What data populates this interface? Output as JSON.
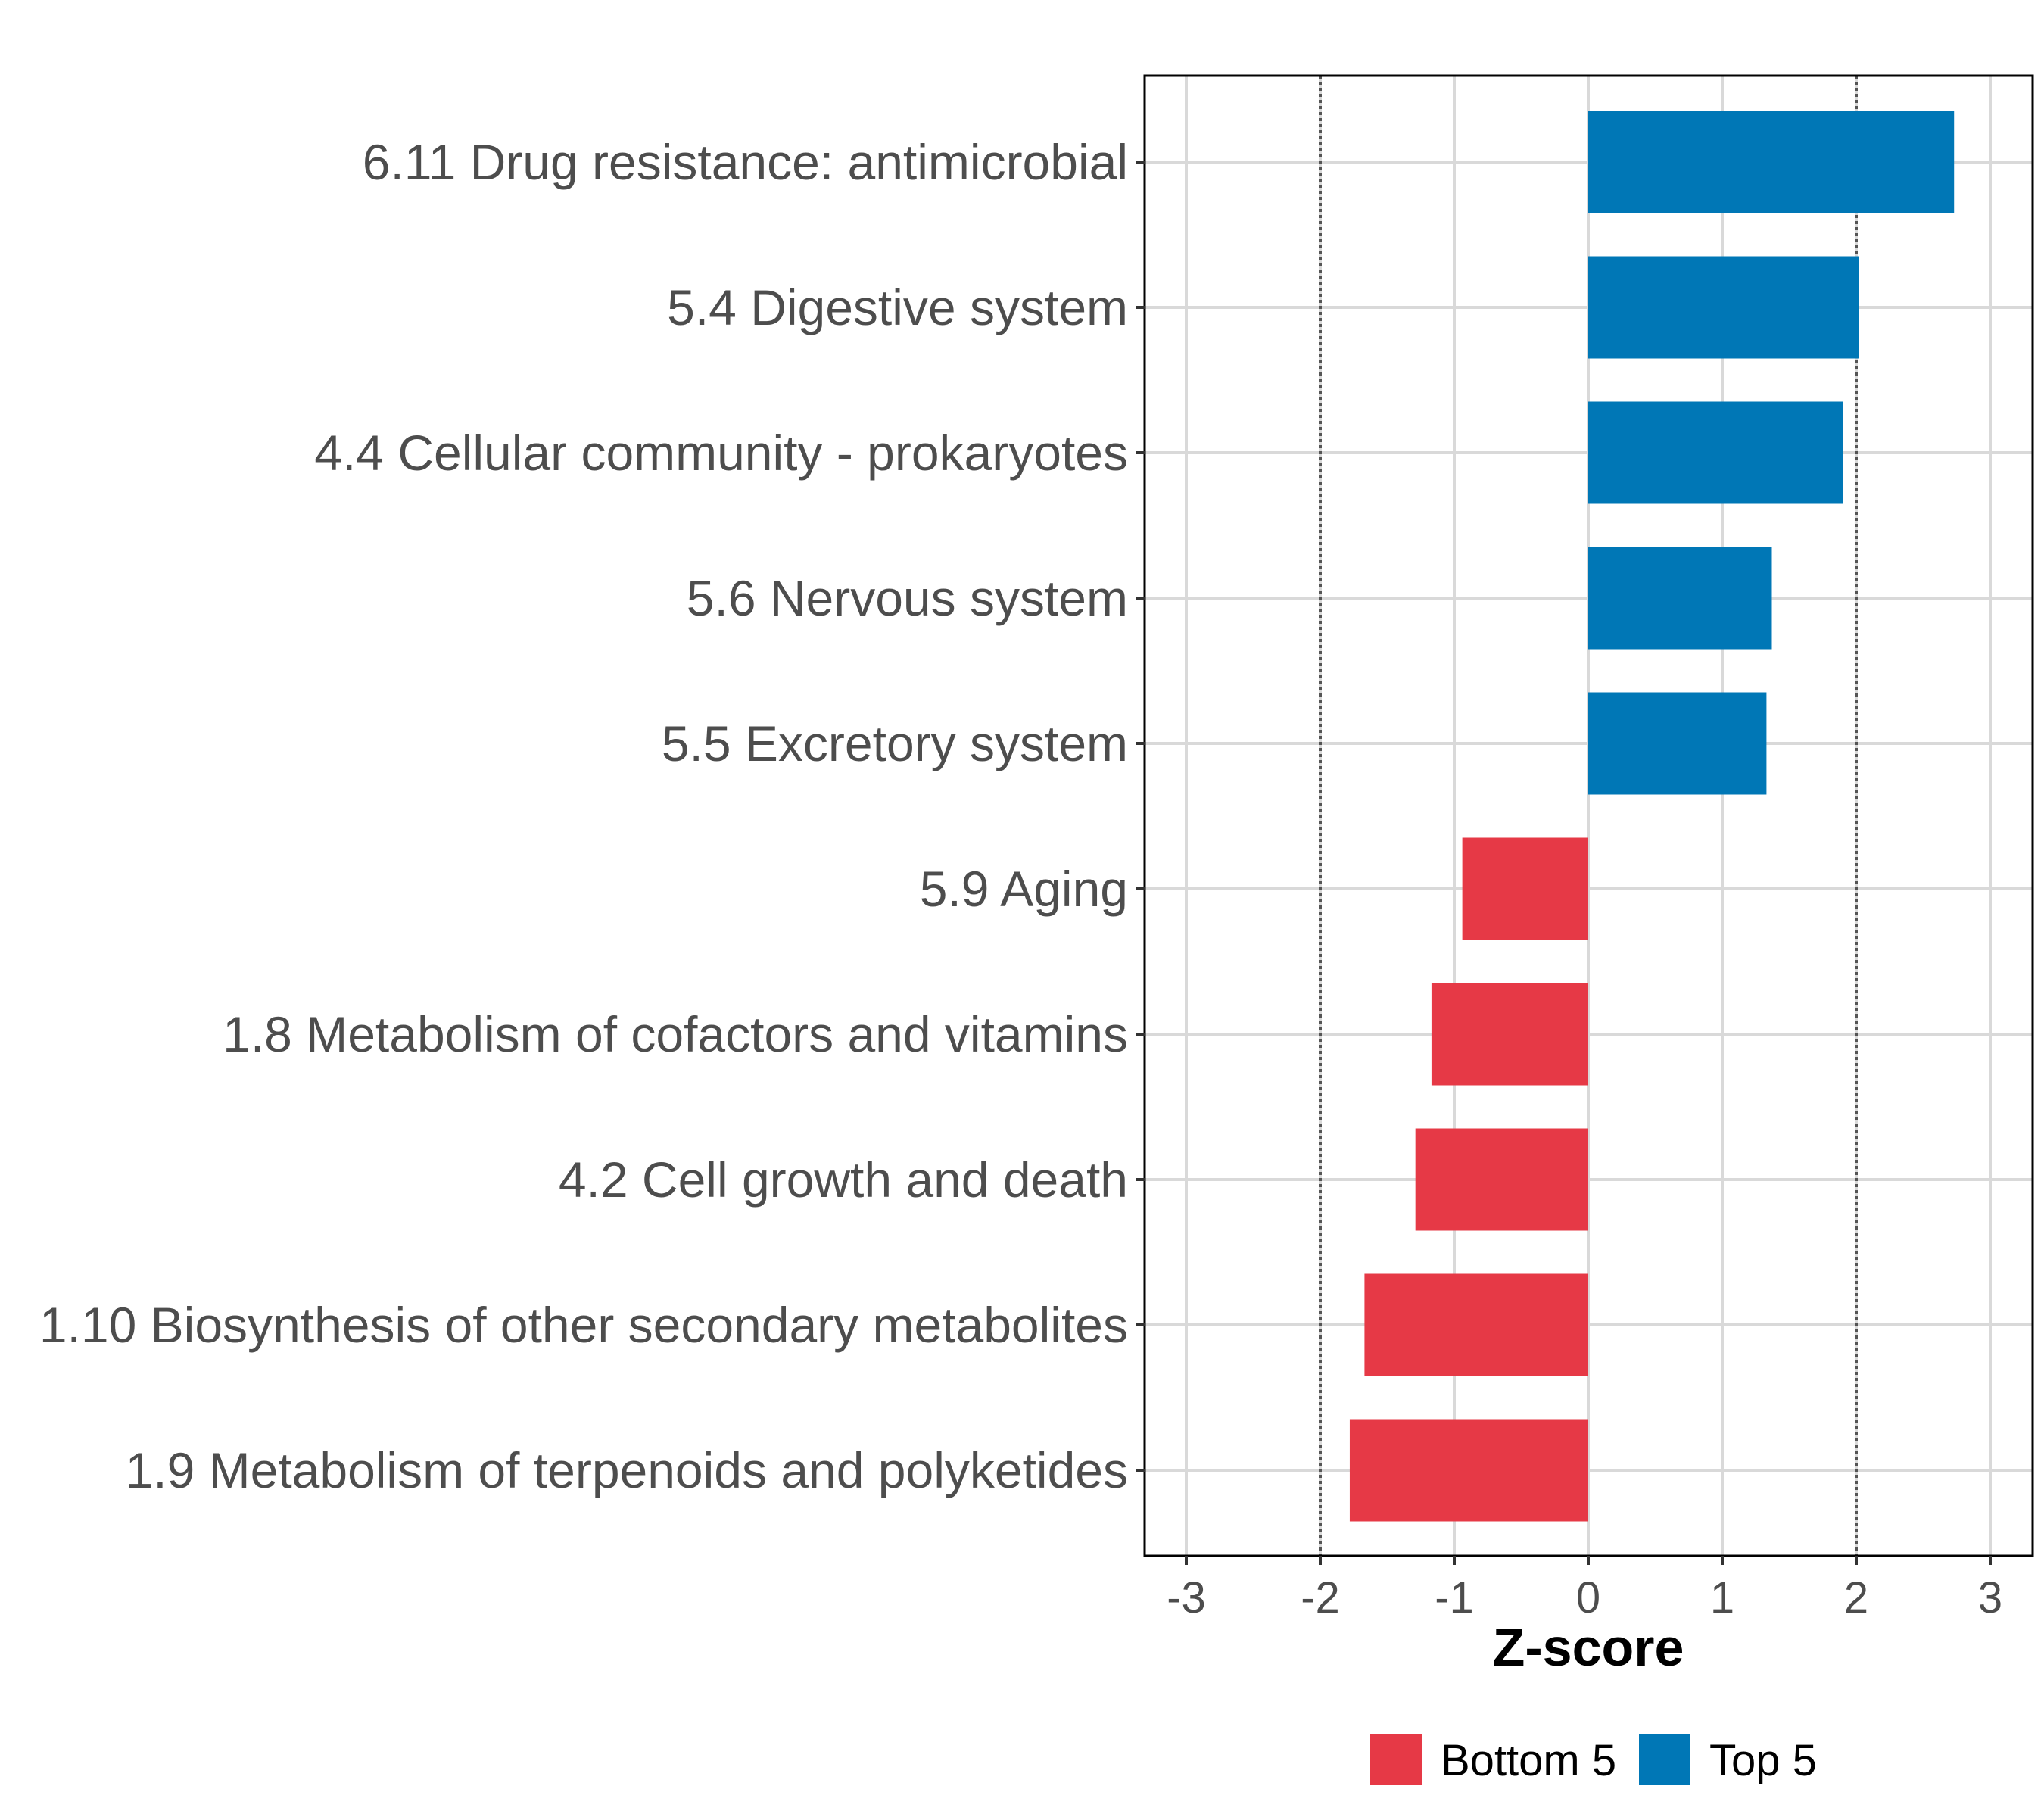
{
  "chart_data": {
    "type": "bar",
    "orientation": "horizontal",
    "title": "",
    "xlabel": "Z-score",
    "ylabel": "",
    "xlim": [
      -3.3,
      3.3
    ],
    "x_ticks": [
      -3,
      -2,
      -1,
      0,
      1,
      2,
      3
    ],
    "x_tick_labels": [
      "-3",
      "-2",
      "-1",
      "0",
      "1",
      "2",
      "3"
    ],
    "reference_lines": [
      -2,
      2
    ],
    "grid": true,
    "categories": [
      "6.11 Drug resistance: antimicrobial",
      "5.4 Digestive system",
      "4.4 Cellular community - prokaryotes",
      "5.6 Nervous system",
      "5.5 Excretory system",
      "5.9 Aging",
      "1.8 Metabolism of cofactors and vitamins",
      "4.2 Cell growth and death",
      "1.10 Biosynthesis of other secondary metabolites",
      "1.9 Metabolism of terpenoids and polyketides"
    ],
    "values": [
      2.73,
      2.02,
      1.9,
      1.37,
      1.33,
      -0.94,
      -1.17,
      -1.29,
      -1.67,
      -1.78
    ],
    "groups": [
      "Top 5",
      "Top 5",
      "Top 5",
      "Top 5",
      "Top 5",
      "Bottom 5",
      "Bottom 5",
      "Bottom 5",
      "Bottom 5",
      "Bottom 5"
    ],
    "legend": {
      "position": "bottom",
      "entries": [
        {
          "label": "Bottom 5",
          "color": "#e63946"
        },
        {
          "label": "Top 5",
          "color": "#0077b6"
        }
      ]
    }
  }
}
